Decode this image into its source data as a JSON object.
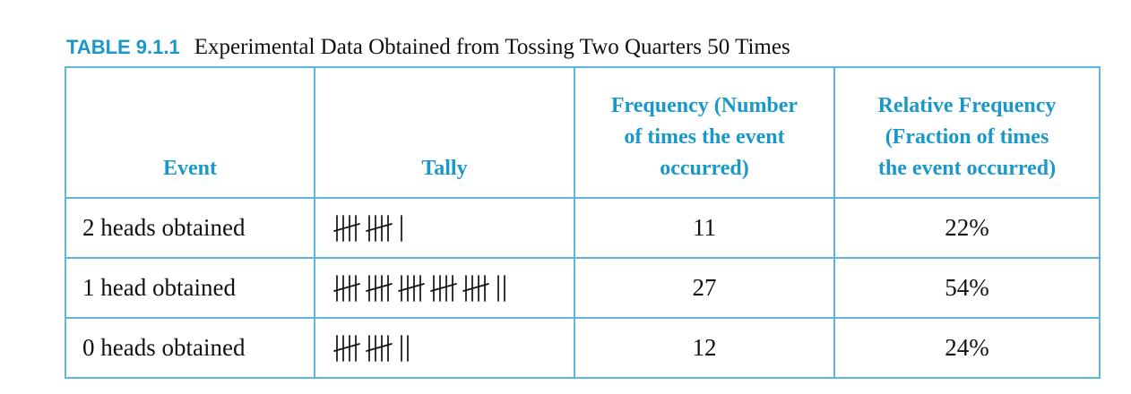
{
  "caption": {
    "label": "TABLE 9.1.1",
    "title": "Experimental Data Obtained from Tossing Two Quarters 50 Times"
  },
  "headers": {
    "event": "Event",
    "tally": "Tally",
    "frequency_line1": "Frequency (Number",
    "frequency_line2": "of times the event",
    "frequency_line3": "occurred)",
    "relative_line1": "Relative Frequency",
    "relative_line2": "(Fraction of times",
    "relative_line3": "the event occurred)"
  },
  "rows": [
    {
      "event": "2 heads obtained",
      "tally": 11,
      "frequency": "11",
      "relative_frequency": "22%"
    },
    {
      "event": "1 head obtained",
      "tally": 27,
      "frequency": "27",
      "relative_frequency": "54%"
    },
    {
      "event": "0 heads obtained",
      "tally": 12,
      "frequency": "12",
      "relative_frequency": "24%"
    }
  ],
  "colors": {
    "accent": "#1a98c9",
    "border": "#5fb6dc",
    "text": "#111111"
  }
}
